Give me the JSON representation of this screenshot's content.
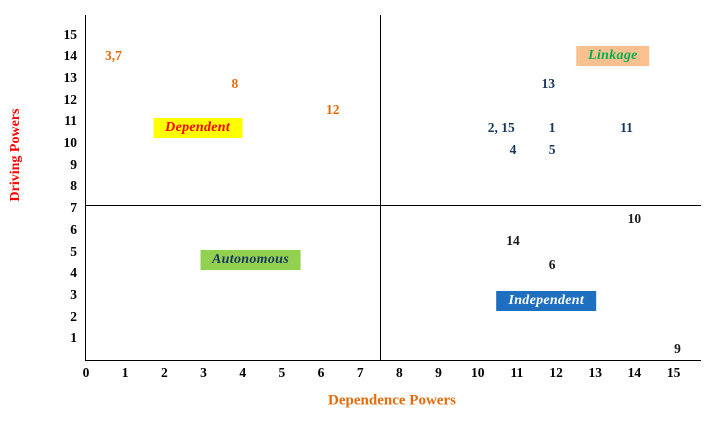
{
  "chart_data": {
    "type": "scatter",
    "title": "",
    "xlabel": "Dependence Powers",
    "ylabel": "Driving Powers",
    "xlabel_color": "#e36c0a",
    "ylabel_color": "#ff0000",
    "xlim": [
      0,
      15.7
    ],
    "ylim": [
      0,
      15.9
    ],
    "grid": false,
    "legend": "none",
    "x_ticks": [
      "0",
      "1",
      "2",
      "3",
      "4",
      "5",
      "6",
      "7",
      "8",
      "9",
      "10",
      "11",
      "12",
      "13",
      "14",
      "15"
    ],
    "y_ticks": [
      "1",
      "2",
      "3",
      "4",
      "5",
      "6",
      "7",
      "8",
      "9",
      "10",
      "11",
      "12",
      "13",
      "14",
      "15"
    ],
    "quadrant_divider": {
      "x": 7.5,
      "y": 7.15
    },
    "points": [
      {
        "label": "3,7",
        "x": 0.7,
        "y": 14.0,
        "color": "#e36c0a"
      },
      {
        "label": "8",
        "x": 3.8,
        "y": 12.7,
        "color": "#e36c0a"
      },
      {
        "label": "12",
        "x": 6.3,
        "y": 11.5,
        "color": "#e36c0a"
      },
      {
        "label": "13",
        "x": 11.8,
        "y": 12.7,
        "color": "#17375e"
      },
      {
        "label": "2, 15",
        "x": 10.6,
        "y": 10.7,
        "color": "#17375e"
      },
      {
        "label": "1",
        "x": 11.9,
        "y": 10.7,
        "color": "#17375e"
      },
      {
        "label": "11",
        "x": 13.8,
        "y": 10.7,
        "color": "#17375e"
      },
      {
        "label": "4",
        "x": 10.9,
        "y": 9.7,
        "color": "#17375e"
      },
      {
        "label": "5",
        "x": 11.9,
        "y": 9.7,
        "color": "#17375e"
      },
      {
        "label": "10",
        "x": 14.0,
        "y": 6.5,
        "color": "#1a1a1a"
      },
      {
        "label": "14",
        "x": 10.9,
        "y": 5.5,
        "color": "#1a1a1a"
      },
      {
        "label": "6",
        "x": 11.9,
        "y": 4.4,
        "color": "#1a1a1a"
      },
      {
        "label": "9",
        "x": 15.1,
        "y": 0.5,
        "color": "#1a1a1a"
      }
    ],
    "quadrants": [
      {
        "label": "Dependent",
        "x": 2.85,
        "y": 10.7,
        "bg": "#ffff00",
        "color": "#ff0000"
      },
      {
        "label": "Linkage",
        "x": 13.45,
        "y": 14.0,
        "bg": "#fac090",
        "color": "#00b050"
      },
      {
        "label": "Autonomous",
        "x": 4.2,
        "y": 4.6,
        "bg": "#92d050",
        "color": "#17375e"
      },
      {
        "label": "Independent",
        "x": 11.75,
        "y": 2.7,
        "bg": "#1f6fc0",
        "color": "#ffffff"
      }
    ]
  }
}
